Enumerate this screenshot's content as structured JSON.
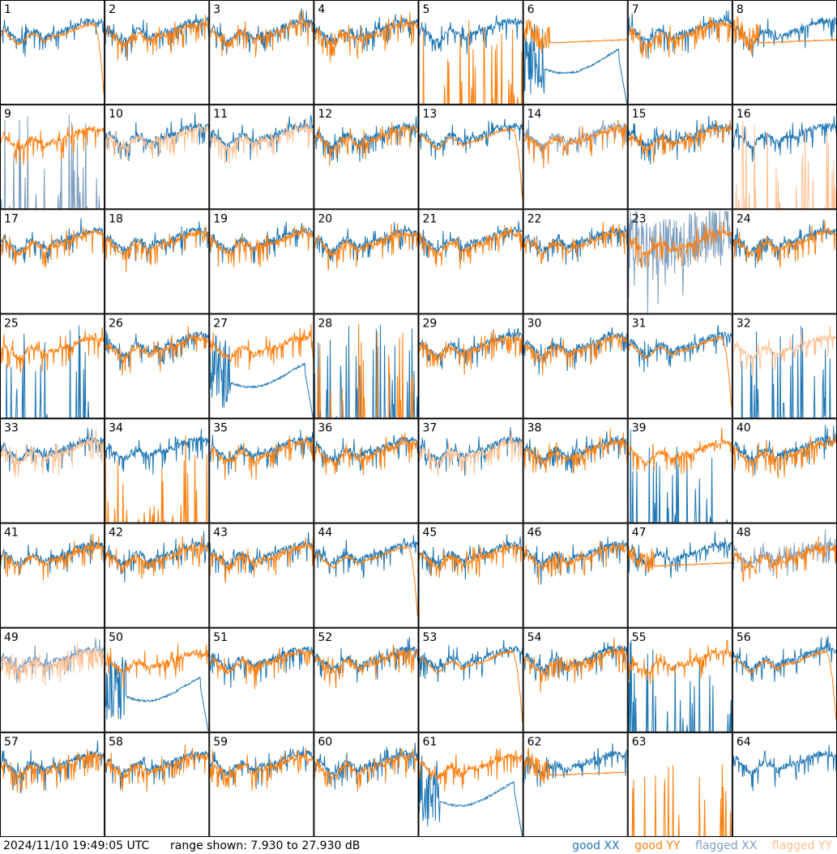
{
  "footer": {
    "timestamp": "2024/11/10 19:49:05 UTC",
    "range_text": "range shown: 7.930 to 27.930 dB"
  },
  "legend": {
    "good_xx": "good XX",
    "good_yy": "good YY",
    "flagged_xx": "flagged XX",
    "flagged_yy": "flagged YY"
  },
  "colors": {
    "good_xx": "#1f77b4",
    "good_yy": "#ff7f0e",
    "flagged_xx": "#7f9fbf",
    "flagged_yy": "#ffbf8f"
  },
  "chart_data": {
    "type": "line",
    "layout": "8x8 small multiples",
    "ylim": [
      7.93,
      27.93
    ],
    "yunit": "dB",
    "series_names": [
      "good XX",
      "good YY",
      "flagged XX",
      "flagged YY"
    ],
    "tiles": [
      {
        "id": "1",
        "xx": "normal",
        "yy": "rolloff"
      },
      {
        "id": "2",
        "xx": "normal",
        "yy": "normal"
      },
      {
        "id": "3",
        "xx": "normal",
        "yy": "normal"
      },
      {
        "id": "4",
        "xx": "normal",
        "yy": "normal"
      },
      {
        "id": "5",
        "xx": "normal",
        "yy": "spikes"
      },
      {
        "id": "6",
        "xx": "dip",
        "yy": "flat"
      },
      {
        "id": "7",
        "xx": "normal",
        "yy": "normal"
      },
      {
        "id": "8",
        "xx": "normal",
        "yy": "flat"
      },
      {
        "id": "9",
        "xx": "spikes",
        "yy": "normal",
        "flagged_xx": true
      },
      {
        "id": "10",
        "xx": "normal",
        "yy": "normal",
        "flagged_yy": true
      },
      {
        "id": "11",
        "xx": "normal",
        "yy": "normal",
        "flagged_yy": true
      },
      {
        "id": "12",
        "xx": "normal",
        "yy": "normal"
      },
      {
        "id": "13",
        "xx": "normal",
        "yy": "rolloff"
      },
      {
        "id": "14",
        "xx": "normal",
        "yy": "normal",
        "flagged_xx": true
      },
      {
        "id": "15",
        "xx": "normal",
        "yy": "normal"
      },
      {
        "id": "16",
        "xx": "normal",
        "yy": "spikes",
        "flagged_yy": true
      },
      {
        "id": "17",
        "xx": "normal",
        "yy": "normal"
      },
      {
        "id": "18",
        "xx": "normal",
        "yy": "normal"
      },
      {
        "id": "19",
        "xx": "normal",
        "yy": "normal"
      },
      {
        "id": "20",
        "xx": "normal",
        "yy": "normal"
      },
      {
        "id": "21",
        "xx": "normal",
        "yy": "normal"
      },
      {
        "id": "22",
        "xx": "normal",
        "yy": "normal"
      },
      {
        "id": "23",
        "xx": "noisy",
        "yy": "normal",
        "flagged_xx": true
      },
      {
        "id": "24",
        "xx": "normal",
        "yy": "normal"
      },
      {
        "id": "25",
        "xx": "spikes",
        "yy": "normal"
      },
      {
        "id": "26",
        "xx": "normal",
        "yy": "normal"
      },
      {
        "id": "27",
        "xx": "dip",
        "yy": "normal"
      },
      {
        "id": "28",
        "xx": "spikes",
        "yy": "spikes"
      },
      {
        "id": "29",
        "xx": "normal",
        "yy": "normal"
      },
      {
        "id": "30",
        "xx": "normal",
        "yy": "normal"
      },
      {
        "id": "31",
        "xx": "normal",
        "yy": "rolloff"
      },
      {
        "id": "32",
        "xx": "spikes",
        "yy": "normal",
        "flagged_yy": true
      },
      {
        "id": "33",
        "xx": "normal",
        "yy": "normal",
        "flagged_yy": true
      },
      {
        "id": "34",
        "xx": "normal",
        "yy": "spikes"
      },
      {
        "id": "35",
        "xx": "normal",
        "yy": "normal"
      },
      {
        "id": "36",
        "xx": "normal",
        "yy": "normal"
      },
      {
        "id": "37",
        "xx": "normal",
        "yy": "normal",
        "flagged_yy": true
      },
      {
        "id": "38",
        "xx": "normal",
        "yy": "normal"
      },
      {
        "id": "39",
        "xx": "spikes",
        "yy": "normal"
      },
      {
        "id": "40",
        "xx": "normal",
        "yy": "normal"
      },
      {
        "id": "41",
        "xx": "normal",
        "yy": "normal"
      },
      {
        "id": "42",
        "xx": "normal",
        "yy": "normal"
      },
      {
        "id": "43",
        "xx": "normal",
        "yy": "normal"
      },
      {
        "id": "44",
        "xx": "normal",
        "yy": "rolloff"
      },
      {
        "id": "45",
        "xx": "normal",
        "yy": "normal"
      },
      {
        "id": "46",
        "xx": "normal",
        "yy": "normal"
      },
      {
        "id": "47",
        "xx": "normal",
        "yy": "flat"
      },
      {
        "id": "48",
        "xx": "normal",
        "yy": "normal",
        "flagged_xx": true
      },
      {
        "id": "49",
        "xx": "normal",
        "yy": "normal",
        "flagged_xx": true,
        "flagged_yy": true
      },
      {
        "id": "50",
        "xx": "dip",
        "yy": "normal"
      },
      {
        "id": "51",
        "xx": "normal",
        "yy": "normal"
      },
      {
        "id": "52",
        "xx": "normal",
        "yy": "normal"
      },
      {
        "id": "53",
        "xx": "normal",
        "yy": "rolloff"
      },
      {
        "id": "54",
        "xx": "normal",
        "yy": "normal"
      },
      {
        "id": "55",
        "xx": "spikes",
        "yy": "normal"
      },
      {
        "id": "56",
        "xx": "normal",
        "yy": "rolloff"
      },
      {
        "id": "57",
        "xx": "normal",
        "yy": "normal"
      },
      {
        "id": "58",
        "xx": "normal",
        "yy": "normal"
      },
      {
        "id": "59",
        "xx": "normal",
        "yy": "normal"
      },
      {
        "id": "60",
        "xx": "normal",
        "yy": "normal"
      },
      {
        "id": "61",
        "xx": "dip",
        "yy": "normal"
      },
      {
        "id": "62",
        "xx": "normal",
        "yy": "flat"
      },
      {
        "id": "63",
        "xx": "none",
        "yy": "spikes"
      },
      {
        "id": "64",
        "xx": "normal",
        "yy": "none"
      }
    ]
  }
}
